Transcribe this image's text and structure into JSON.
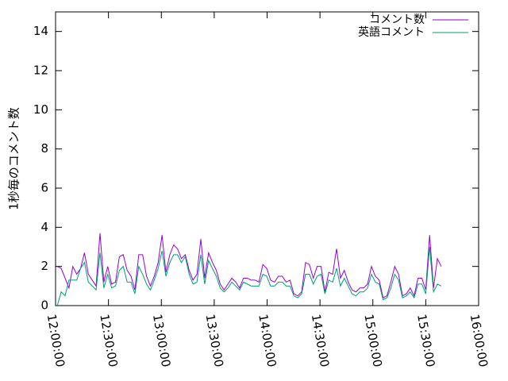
{
  "chart_data": {
    "type": "line",
    "ylabel": "1秒毎のコメント数",
    "x": [
      721.0,
      723.2,
      725.4,
      727.6,
      729.8,
      732.0,
      734.2,
      736.4,
      738.6,
      740.8,
      743.0,
      745.2,
      747.4,
      749.6,
      751.8,
      754.0,
      756.2,
      758.4,
      760.6,
      762.8,
      765.0,
      767.2,
      769.4,
      771.6,
      773.8,
      776.0,
      778.2,
      780.4,
      782.6,
      784.8,
      787.0,
      789.2,
      791.4,
      793.6,
      795.8,
      798.0,
      800.2,
      802.4,
      804.6,
      806.8,
      809.0,
      811.2,
      813.4,
      815.6,
      817.8,
      820.0,
      822.2,
      824.4,
      826.6,
      828.8,
      831.0,
      833.2,
      835.4,
      837.6,
      839.8,
      842.0,
      844.2,
      846.4,
      848.6,
      850.8,
      853.0,
      855.2,
      857.4,
      859.6,
      861.8,
      864.0,
      866.2,
      868.4,
      870.6,
      872.8,
      875.0,
      877.2,
      879.4,
      881.6,
      883.8,
      886.0,
      888.2,
      890.4,
      892.6,
      894.8,
      897.0,
      899.2,
      901.4,
      903.6,
      905.8,
      908.0,
      910.2,
      912.4,
      914.6,
      916.8,
      919.0,
      921.2,
      923.4,
      925.6,
      927.8,
      930.0,
      932.2,
      934.4,
      936.6,
      938.8
    ],
    "series": [
      {
        "name": "コメント数",
        "color": "#9400d3",
        "values": [
          2.0,
          1.9,
          1.4,
          0.9,
          2.0,
          1.6,
          1.9,
          2.7,
          1.6,
          1.3,
          1.0,
          3.7,
          1.2,
          2.0,
          1.1,
          1.2,
          2.5,
          2.6,
          1.8,
          1.5,
          0.8,
          2.6,
          2.6,
          1.5,
          1.0,
          1.5,
          2.2,
          3.6,
          1.7,
          2.6,
          3.1,
          2.9,
          2.4,
          2.6,
          1.8,
          1.3,
          1.6,
          3.4,
          1.4,
          2.7,
          2.2,
          1.8,
          1.1,
          0.8,
          1.1,
          1.4,
          1.2,
          0.9,
          1.4,
          1.4,
          1.3,
          1.3,
          1.2,
          2.1,
          1.9,
          1.3,
          1.2,
          1.5,
          1.5,
          1.2,
          1.3,
          0.6,
          0.5,
          0.7,
          2.2,
          2.1,
          1.4,
          2.0,
          2.0,
          0.7,
          1.7,
          1.6,
          2.9,
          1.4,
          1.8,
          1.2,
          0.8,
          0.7,
          0.9,
          0.9,
          1.1,
          2.0,
          1.5,
          1.3,
          0.4,
          0.5,
          1.2,
          2.0,
          1.6,
          0.5,
          0.6,
          0.9,
          0.5,
          1.4,
          1.4,
          0.8,
          3.6,
          0.9,
          2.4,
          2.0
        ]
      },
      {
        "name": "英語コメント",
        "color": "#009e73",
        "values": [
          0.0,
          0.7,
          0.5,
          1.3,
          1.3,
          1.3,
          1.9,
          2.2,
          1.2,
          1.0,
          0.8,
          2.7,
          0.9,
          1.6,
          0.9,
          1.0,
          1.8,
          2.0,
          1.2,
          1.2,
          0.6,
          2.0,
          1.6,
          1.1,
          0.8,
          1.3,
          1.9,
          2.8,
          1.5,
          2.2,
          2.6,
          2.6,
          2.2,
          2.5,
          1.6,
          1.1,
          1.2,
          2.6,
          1.1,
          2.3,
          1.9,
          1.5,
          0.9,
          0.7,
          0.9,
          1.2,
          1.0,
          0.8,
          1.2,
          1.1,
          1.0,
          1.0,
          1.0,
          1.6,
          1.5,
          1.0,
          1.0,
          1.2,
          1.2,
          1.0,
          1.0,
          0.5,
          0.4,
          0.6,
          1.6,
          1.6,
          1.1,
          1.5,
          1.6,
          0.6,
          1.3,
          1.2,
          1.9,
          1.0,
          1.4,
          1.0,
          0.6,
          0.5,
          0.7,
          0.7,
          0.9,
          1.6,
          1.2,
          1.1,
          0.3,
          0.4,
          0.9,
          1.6,
          1.3,
          0.4,
          0.5,
          0.7,
          0.4,
          1.1,
          1.1,
          0.6,
          3.0,
          0.7,
          1.1,
          1.0
        ]
      }
    ],
    "xlim": [
      720,
      960
    ],
    "xticks": [
      {
        "value": 720,
        "label": "12:00:00"
      },
      {
        "value": 750,
        "label": "12:30:00"
      },
      {
        "value": 780,
        "label": "13:00:00"
      },
      {
        "value": 810,
        "label": "13:30:00"
      },
      {
        "value": 840,
        "label": "14:00:00"
      },
      {
        "value": 870,
        "label": "14:30:00"
      },
      {
        "value": 900,
        "label": "15:00:00"
      },
      {
        "value": 930,
        "label": "15:30:00"
      },
      {
        "value": 960,
        "label": "16:00:00"
      }
    ],
    "ylim": [
      0,
      15
    ],
    "yticks": [
      0,
      2,
      4,
      6,
      8,
      10,
      12,
      14
    ],
    "legend": "top-right"
  }
}
